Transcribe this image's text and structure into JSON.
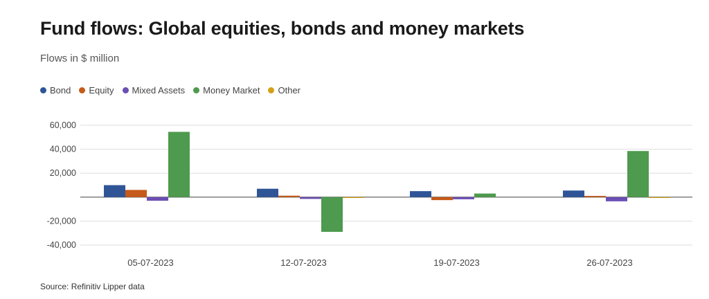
{
  "chart_data": {
    "type": "bar",
    "title": "Fund flows: Global equities, bonds and money markets",
    "subtitle": "Flows in $ million",
    "source": "Source: Refinitiv Lipper data",
    "categories": [
      "05-07-2023",
      "12-07-2023",
      "19-07-2023",
      "26-07-2023"
    ],
    "series": [
      {
        "name": "Bond",
        "color": "#2f5597",
        "values": [
          10000,
          7000,
          5000,
          5500
        ]
      },
      {
        "name": "Equity",
        "color": "#c55a1a",
        "values": [
          6000,
          1200,
          -2500,
          1000
        ]
      },
      {
        "name": "Mixed Assets",
        "color": "#6b4fb3",
        "values": [
          -3000,
          -1500,
          -1800,
          -3500
        ]
      },
      {
        "name": "Money Market",
        "color": "#4e9a4e",
        "values": [
          54500,
          -29000,
          3000,
          38500
        ]
      },
      {
        "name": "Other",
        "color": "#d4a017",
        "values": [
          0,
          -500,
          0,
          -500
        ]
      }
    ],
    "yticks": [
      60000,
      40000,
      20000,
      0,
      -20000,
      -40000
    ],
    "ytick_labels": [
      "60,000",
      "40,000",
      "20,000",
      "",
      "-20,000",
      "-40,000"
    ],
    "ylim": [
      -40000,
      60000
    ],
    "grid": true,
    "legend_position": "top-left"
  }
}
